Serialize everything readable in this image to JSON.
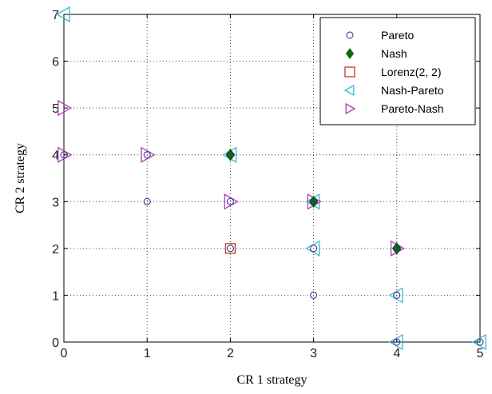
{
  "chart_data": {
    "type": "scatter",
    "xlabel": "CR 1 strategy",
    "ylabel": "CR 2 strategy",
    "xlim": [
      0,
      5
    ],
    "ylim": [
      0,
      7
    ],
    "xticks": [
      "0",
      "1",
      "2",
      "3",
      "4",
      "5"
    ],
    "yticks": [
      "0",
      "1",
      "2",
      "3",
      "4",
      "5",
      "6",
      "7"
    ],
    "grid": true,
    "legend_position": "top-right",
    "series": [
      {
        "name": "Pareto",
        "marker": "circle",
        "color": "#2a2a8c",
        "points": [
          [
            0,
            4
          ],
          [
            1,
            4
          ],
          [
            1,
            3
          ],
          [
            2,
            4
          ],
          [
            2,
            3
          ],
          [
            2,
            2
          ],
          [
            3,
            3
          ],
          [
            3,
            2
          ],
          [
            3,
            1
          ],
          [
            4,
            2
          ],
          [
            4,
            1
          ],
          [
            4,
            0
          ],
          [
            5,
            0
          ]
        ]
      },
      {
        "name": "Nash",
        "marker": "diamond-filled",
        "color": "#0b6b0b",
        "points": [
          [
            2,
            4
          ],
          [
            3,
            3
          ],
          [
            4,
            2
          ]
        ]
      },
      {
        "name": "Lorenz(2, 2)",
        "marker": "square",
        "color": "#c0392b",
        "points": [
          [
            2,
            2
          ]
        ]
      },
      {
        "name": "Nash-Pareto",
        "marker": "triangle-left",
        "color": "#3cbccc",
        "points": [
          [
            0,
            7
          ],
          [
            2,
            4
          ],
          [
            3,
            3
          ],
          [
            3,
            2
          ],
          [
            4,
            1
          ],
          [
            4,
            0
          ],
          [
            5,
            0
          ]
        ]
      },
      {
        "name": "Pareto-Nash",
        "marker": "triangle-right",
        "color": "#b23ab8",
        "points": [
          [
            0,
            5
          ],
          [
            0,
            4
          ],
          [
            1,
            4
          ],
          [
            2,
            3
          ],
          [
            3,
            3
          ],
          [
            4,
            2
          ]
        ]
      }
    ]
  }
}
